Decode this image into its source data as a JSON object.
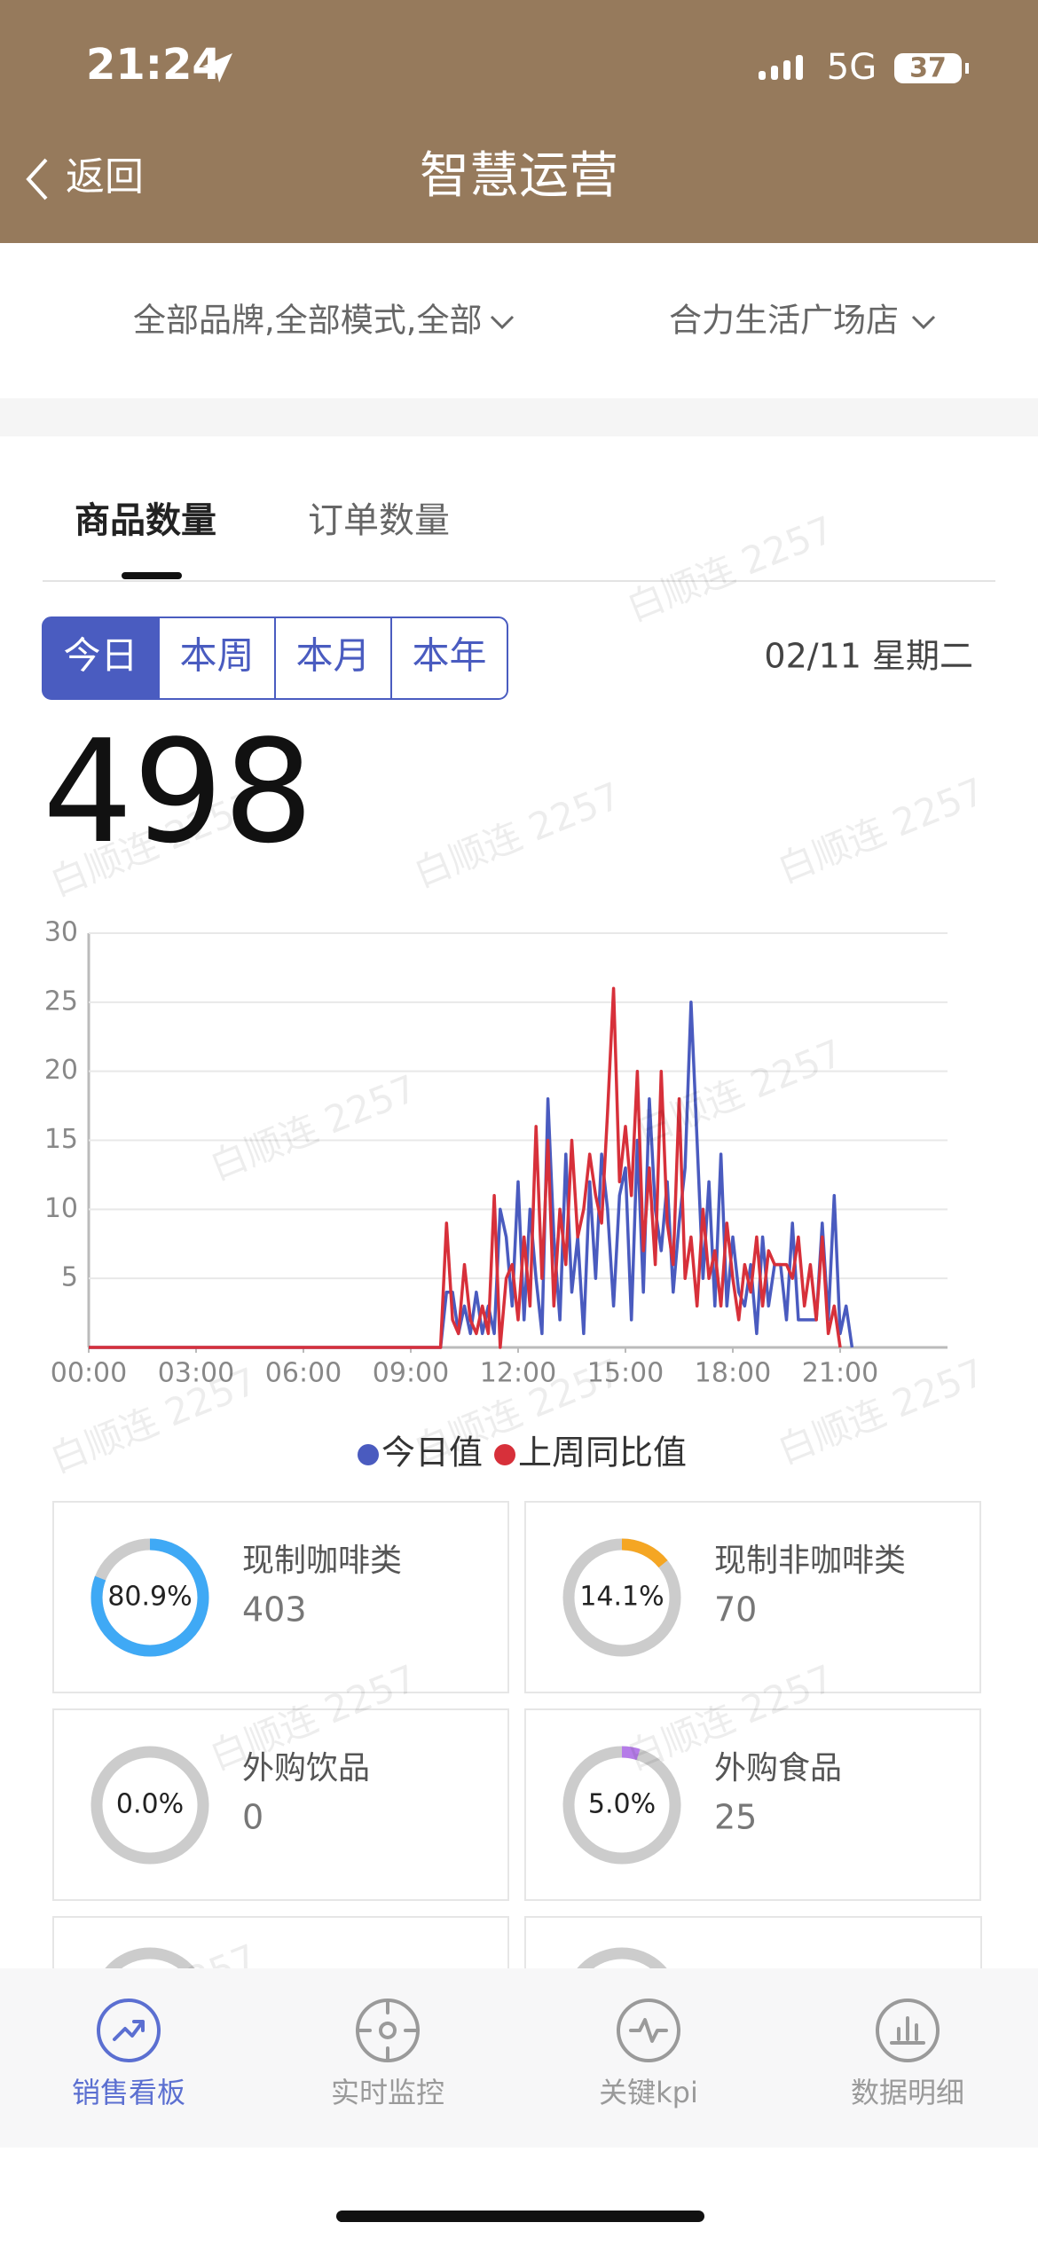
{
  "status_bar": {
    "time": "21:24",
    "network": "5G",
    "battery": "37"
  },
  "header": {
    "back": "返回",
    "title": "智慧运营"
  },
  "filters": [
    "全部品牌,全部模式,全部",
    "合力生活广场店"
  ],
  "tabs": [
    "商品数量",
    "订单数量"
  ],
  "periods": [
    "今日",
    "本周",
    "本月",
    "本年"
  ],
  "date": "02/11 星期二",
  "total": 498,
  "chart_data": {
    "type": "line",
    "x": [
      0,
      590,
      600,
      610,
      620,
      630,
      640,
      650,
      660,
      670,
      680,
      690,
      700,
      710,
      720,
      730,
      740,
      750,
      760,
      770,
      780,
      790,
      800,
      810,
      820,
      830,
      840,
      850,
      860,
      870,
      880,
      890,
      900,
      910,
      920,
      930,
      940,
      950,
      960,
      970,
      980,
      990,
      1000,
      1010,
      1020,
      1030,
      1040,
      1050,
      1060,
      1070,
      1080,
      1090,
      1100,
      1110,
      1120,
      1130,
      1140,
      1150,
      1160,
      1170,
      1180,
      1190,
      1200,
      1210,
      1220,
      1230,
      1240,
      1250,
      1260,
      1270,
      1280,
      1290,
      1300
    ],
    "xlim": [
      0,
      1440
    ],
    "xticks": [
      {
        "value": 0,
        "label": "00:00"
      },
      {
        "value": 180,
        "label": "03:00"
      },
      {
        "value": 360,
        "label": "06:00"
      },
      {
        "value": 540,
        "label": "09:00"
      },
      {
        "value": 720,
        "label": "12:00"
      },
      {
        "value": 900,
        "label": "15:00"
      },
      {
        "value": 1080,
        "label": "18:00"
      },
      {
        "value": 1260,
        "label": "21:00"
      }
    ],
    "ylim": [
      0,
      30
    ],
    "yticks": [
      5,
      10,
      15,
      20,
      25,
      30
    ],
    "grid": true,
    "legend": "bottom",
    "series": [
      {
        "name": "今日值",
        "color": "#4a5bbf",
        "values": [
          0,
          0,
          4,
          4,
          1,
          3,
          1,
          4,
          1,
          3,
          1,
          10,
          8,
          3,
          12,
          2,
          10,
          5,
          1,
          18,
          8,
          2,
          14,
          4,
          8,
          1,
          12,
          5,
          14,
          10,
          3,
          11,
          13,
          2,
          15,
          4,
          18,
          10,
          7,
          12,
          4,
          9,
          13,
          25,
          15,
          5,
          12,
          3,
          14,
          3,
          8,
          4,
          3,
          6,
          1,
          8,
          3,
          6,
          6,
          2,
          9,
          2,
          2,
          2,
          2,
          9,
          2,
          11,
          1,
          3,
          0,
          null,
          null
        ]
      },
      {
        "name": "上周同比值",
        "color": "#d7303a",
        "values": [
          0,
          0,
          9,
          2,
          1,
          6,
          2,
          1,
          3,
          1,
          11,
          0,
          5,
          6,
          2,
          8,
          3,
          16,
          5,
          15,
          3,
          10,
          6,
          15,
          8,
          10,
          14,
          11,
          9,
          17,
          26,
          12,
          16,
          11,
          20,
          7,
          13,
          6,
          20,
          9,
          6,
          18,
          5,
          8,
          3,
          10,
          5,
          7,
          3,
          9,
          5,
          2,
          6,
          4,
          8,
          3,
          7,
          6,
          6,
          6,
          5,
          8,
          3,
          6,
          2,
          8,
          1,
          3,
          0,
          null,
          null,
          null,
          null
        ]
      }
    ]
  },
  "cards": [
    {
      "name": "现制咖啡类",
      "value": 403,
      "percent": 80.9,
      "percent_label": "80.9%",
      "color": "#3fa9f5"
    },
    {
      "name": "现制非咖啡类",
      "value": 70,
      "percent": 14.1,
      "percent_label": "14.1%",
      "color": "#f5a623"
    },
    {
      "name": "外购饮品",
      "value": 0,
      "percent": 0.0,
      "percent_label": "0.0%",
      "color": "#3fa9f5"
    },
    {
      "name": "外购食品",
      "value": 25,
      "percent": 5.0,
      "percent_label": "5.0%",
      "color": "#b57ce8"
    }
  ],
  "watermark": "白顺连 2257",
  "nav": [
    "销售看板",
    "实时监控",
    "关键kpi",
    "数据明细"
  ]
}
